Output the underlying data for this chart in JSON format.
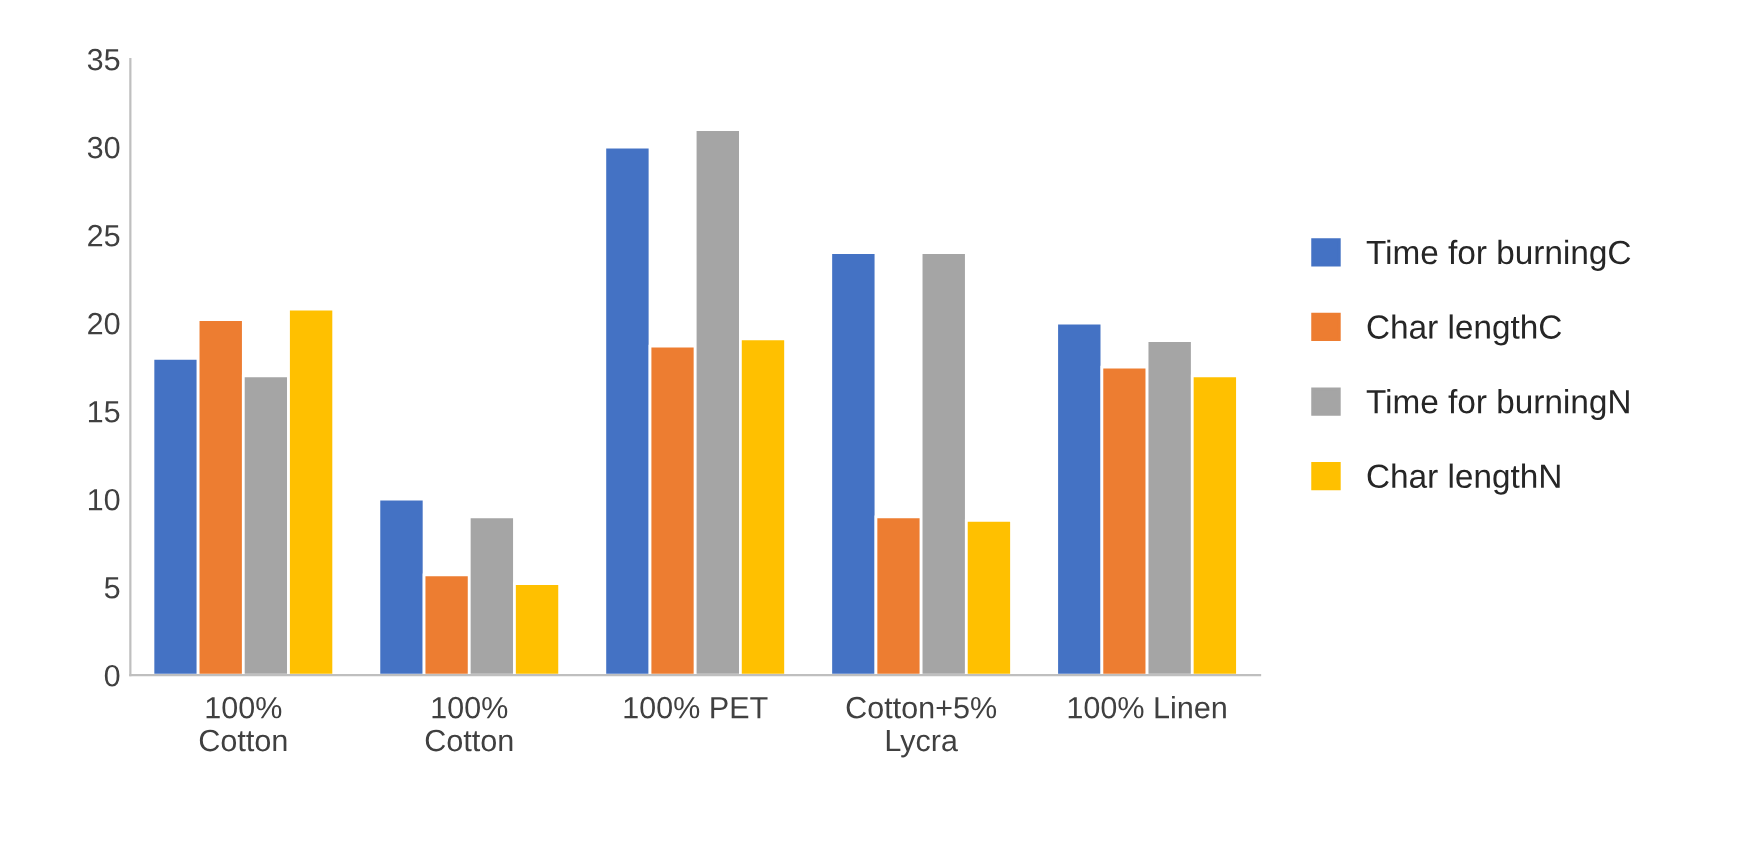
{
  "chart_data": {
    "type": "bar",
    "categories": [
      "100%\nCotton",
      "100%\nCotton",
      "100% PET",
      "Cotton+5%\nLycra",
      "100% Linen"
    ],
    "series": [
      {
        "name": "Time for burningC",
        "color": "#4472c4",
        "values": [
          18,
          10,
          30,
          24,
          20
        ]
      },
      {
        "name": "Char lengthC",
        "color": "#ed7d31",
        "values": [
          20.2,
          5.7,
          18.7,
          9,
          17.5
        ]
      },
      {
        "name": "Time for burningN",
        "color": "#a5a5a5",
        "values": [
          17,
          9,
          31,
          24,
          19
        ]
      },
      {
        "name": "Char lengthN",
        "color": "#ffc000",
        "values": [
          20.8,
          5.2,
          19.1,
          8.8,
          17
        ]
      }
    ],
    "ylim": [
      0,
      35
    ],
    "yticks": [
      0,
      5,
      10,
      15,
      20,
      25,
      30,
      35
    ],
    "grid": false,
    "legend": "right"
  }
}
